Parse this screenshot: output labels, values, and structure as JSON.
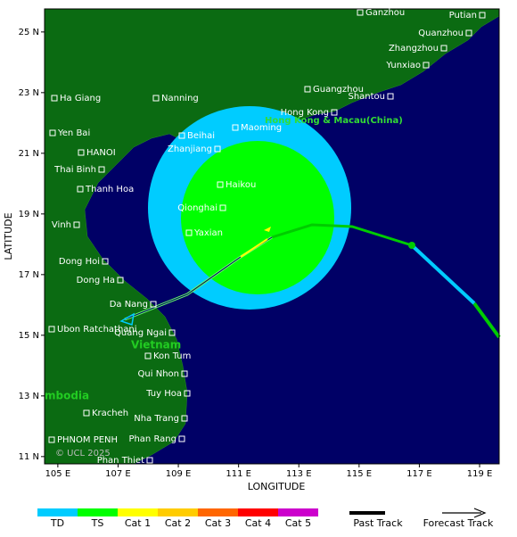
{
  "map": {
    "xlabel": "LONGITUDE",
    "ylabel": "LATITUDE",
    "xlim": [
      104.56,
      119.65
    ],
    "ylim": [
      10.76,
      25.76
    ],
    "xticks": [
      {
        "value": 105,
        "label": "105 E"
      },
      {
        "value": 107,
        "label": "107 E"
      },
      {
        "value": 109,
        "label": "109 E"
      },
      {
        "value": 111,
        "label": "111 E"
      },
      {
        "value": 113,
        "label": "113 E"
      },
      {
        "value": 115,
        "label": "115 E"
      },
      {
        "value": 117,
        "label": "117 E"
      },
      {
        "value": 119,
        "label": "119 E"
      }
    ],
    "yticks": [
      {
        "value": 25,
        "label": "25 N"
      },
      {
        "value": 23,
        "label": "23 N"
      },
      {
        "value": 21,
        "label": "21 N"
      },
      {
        "value": 19,
        "label": "19 N"
      },
      {
        "value": 17,
        "label": "17 N"
      },
      {
        "value": 15,
        "label": "15 N"
      },
      {
        "value": 13,
        "label": "13 N"
      },
      {
        "value": 11,
        "label": "11 N"
      }
    ],
    "places": [
      "Ganzhou",
      "Putian",
      "Quanzhou",
      "Zhangzhou",
      "Yunxiao",
      "Guangzhou",
      "Shantou",
      "Hong Kong",
      "Maoming",
      "Beihai",
      "Zhanjiang",
      "Ha Giang",
      "Nanning",
      "Yen Bai",
      "HANOI",
      "Thai Binh",
      "Thanh Hoa",
      "Haikou",
      "Qionghai",
      "Vinh",
      "Yaxian",
      "Dong Hoi",
      "Dong Ha",
      "Da Nang",
      "Ubon Ratchathani",
      "Quang Ngai",
      "Kon Tum",
      "Qui Nhon",
      "Tuy Hoa",
      "Kracheh",
      "Nha Trang",
      "PHNOM PENH",
      "Phan Rang",
      "Phan Thiet"
    ],
    "regions": [
      "Hong Kong & Macau(China)",
      "Vietnam",
      "mbodia"
    ],
    "credit": "© UCL 2025"
  },
  "legend": {
    "categories": [
      {
        "label": "TD",
        "color": "#00ccff"
      },
      {
        "label": "TS",
        "color": "#00ff00"
      },
      {
        "label": "Cat 1",
        "color": "#ffff00"
      },
      {
        "label": "Cat 2",
        "color": "#ffcc00"
      },
      {
        "label": "Cat 3",
        "color": "#ff6600"
      },
      {
        "label": "Cat 4",
        "color": "#ff0000"
      },
      {
        "label": "Cat 5",
        "color": "#cc00cc"
      }
    ],
    "past_track": "Past Track",
    "forecast_track": "Forecast Track"
  }
}
